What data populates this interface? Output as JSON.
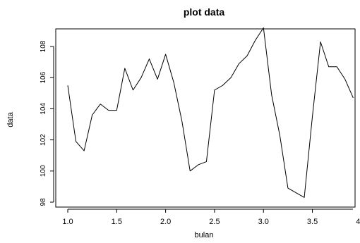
{
  "chart_data": {
    "type": "line",
    "title": "plot data",
    "xlabel": "bulan",
    "ylabel": "data",
    "xlim": [
      1.0,
      3.92
    ],
    "ylim": [
      97.9,
      109.6
    ],
    "grid": false,
    "x_ticks": [
      {
        "value": 1.0,
        "label": "1.0"
      },
      {
        "value": 1.5,
        "label": "1.5"
      },
      {
        "value": 2.0,
        "label": "2.0"
      },
      {
        "value": 2.5,
        "label": "2.5"
      },
      {
        "value": 3.0,
        "label": "3.0"
      },
      {
        "value": 3.5,
        "label": "3.5"
      },
      {
        "value": 4.0,
        "label": "4.0"
      }
    ],
    "y_ticks": [
      {
        "value": 98,
        "label": "98"
      },
      {
        "value": 100,
        "label": "100"
      },
      {
        "value": 102,
        "label": "102"
      },
      {
        "value": 104,
        "label": "104"
      },
      {
        "value": 106,
        "label": "106"
      },
      {
        "value": 108,
        "label": "108"
      }
    ],
    "series": [
      {
        "x": [
          1.0,
          1.083,
          1.167,
          1.25,
          1.333,
          1.417,
          1.5,
          1.583,
          1.667,
          1.75,
          1.833,
          1.917,
          2.0,
          2.083,
          2.167,
          2.25,
          2.333,
          2.417,
          2.5,
          2.583,
          2.667,
          2.75,
          2.833,
          2.917,
          3.0,
          3.083,
          3.167,
          3.25,
          3.333,
          3.417,
          3.5,
          3.583,
          3.667,
          3.75,
          3.833,
          3.917
        ],
        "values": [
          105.5,
          101.9,
          101.3,
          103.6,
          104.3,
          103.9,
          103.9,
          106.6,
          105.2,
          106.0,
          107.2,
          105.9,
          107.5,
          105.7,
          103.2,
          100.0,
          100.4,
          100.6,
          105.2,
          105.5,
          106.0,
          106.9,
          107.4,
          108.4,
          109.2,
          104.9,
          102.3,
          98.9,
          98.6,
          98.3,
          103.5,
          108.3,
          106.7,
          106.7,
          105.9,
          104.7
        ]
      }
    ]
  }
}
